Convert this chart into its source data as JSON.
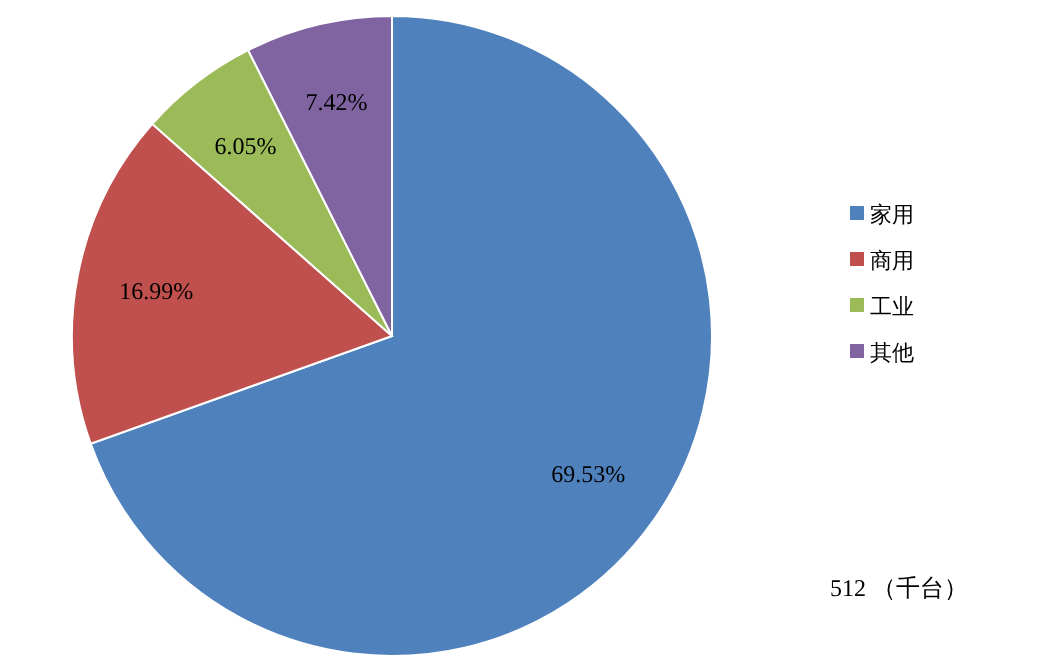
{
  "chart_data": {
    "type": "pie",
    "categories": [
      "家用",
      "商用",
      "工业",
      "其他"
    ],
    "values": [
      69.53,
      16.99,
      6.05,
      7.42
    ],
    "value_labels": [
      "69.53%",
      "16.99%",
      "6.05%",
      "7.42%"
    ],
    "colors": [
      "#4f81bd",
      "#c0504d",
      "#9bbb59",
      "#8064a2"
    ],
    "legend": "right",
    "annotations": [
      "512 （千台）"
    ]
  }
}
